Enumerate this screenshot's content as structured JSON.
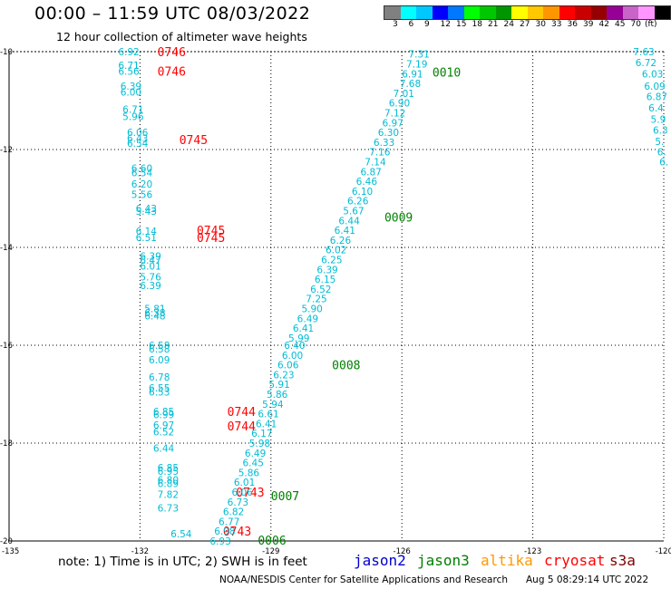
{
  "header": {
    "title": "00:00 – 11:59 UTC 08/03/2022",
    "subtitle": "12 hour collection of altimeter wave heights"
  },
  "legend": {
    "colors": [
      "#808080",
      "#00ffff",
      "#00c8ff",
      "#0000ff",
      "#0078ff",
      "#00ff00",
      "#00c800",
      "#009600",
      "#ffff00",
      "#ffc800",
      "#ff9600",
      "#ff0000",
      "#c80000",
      "#960000",
      "#960096",
      "#c864c8",
      "#ff96ff",
      "#000000"
    ],
    "labels": [
      "3",
      "6",
      "9",
      "12",
      "15",
      "18",
      "21",
      "24",
      "27",
      "30",
      "33",
      "36",
      "39",
      "42",
      "45",
      "70",
      "(ft)"
    ]
  },
  "axes": {
    "lon_labels": [
      "-135",
      "-132",
      "-129",
      "-126",
      "-123",
      "-120"
    ],
    "lat_labels": [
      "-10",
      "-12",
      "-14",
      "-16",
      "-18",
      "-20"
    ]
  },
  "colors": {
    "swh": "#00bcd4",
    "time_jason2": "#ff0000",
    "time_jason3": "#008000"
  },
  "passes": [
    {
      "name": "track-a",
      "time_labels": [
        {
          "text": "0746",
          "lon": -131.6,
          "lat": -10.0
        },
        {
          "text": "0746",
          "lon": -131.6,
          "lat": -10.4
        },
        {
          "text": "0745",
          "lon": -131.1,
          "lat": -11.8
        },
        {
          "text": "0745",
          "lon": -130.7,
          "lat": -13.65
        },
        {
          "text": "0745",
          "lon": -130.7,
          "lat": -13.8
        },
        {
          "text": "0744",
          "lon": -130.0,
          "lat": -17.35
        },
        {
          "text": "0744",
          "lon": -130.0,
          "lat": -17.65
        },
        {
          "text": "0743",
          "lon": -129.8,
          "lat": -19.0
        },
        {
          "text": "0743",
          "lon": -130.1,
          "lat": -19.8
        }
      ],
      "values": [
        {
          "text": "6.92",
          "lon": -132.5,
          "lat": -10.0
        },
        {
          "text": "6.71",
          "lon": -132.5,
          "lat": -10.28
        },
        {
          "text": "6.56",
          "lon": -132.5,
          "lat": -10.4
        },
        {
          "text": "6.39",
          "lon": -132.45,
          "lat": -10.7
        },
        {
          "text": "6.00",
          "lon": -132.45,
          "lat": -10.82
        },
        {
          "text": "6.71",
          "lon": -132.4,
          "lat": -11.18
        },
        {
          "text": "5.96",
          "lon": -132.4,
          "lat": -11.32
        },
        {
          "text": "6.06",
          "lon": -132.3,
          "lat": -11.65
        },
        {
          "text": "6.43",
          "lon": -132.3,
          "lat": -11.77
        },
        {
          "text": "6.54",
          "lon": -132.3,
          "lat": -11.87
        },
        {
          "text": "6.60",
          "lon": -132.2,
          "lat": -12.38
        },
        {
          "text": "6.54",
          "lon": -132.2,
          "lat": -12.47
        },
        {
          "text": "6.20",
          "lon": -132.2,
          "lat": -12.7
        },
        {
          "text": "5.56",
          "lon": -132.2,
          "lat": -12.92
        },
        {
          "text": "6.43",
          "lon": -132.1,
          "lat": -13.2
        },
        {
          "text": "5.43",
          "lon": -132.1,
          "lat": -13.26
        },
        {
          "text": "6.14",
          "lon": -132.1,
          "lat": -13.67
        },
        {
          "text": "6.51",
          "lon": -132.1,
          "lat": -13.8
        },
        {
          "text": "6.39",
          "lon": -132.0,
          "lat": -14.18
        },
        {
          "text": "6.47",
          "lon": -132.0,
          "lat": -14.26
        },
        {
          "text": "6.01",
          "lon": -132.0,
          "lat": -14.38
        },
        {
          "text": "5.76",
          "lon": -132.0,
          "lat": -14.6
        },
        {
          "text": "6.39",
          "lon": -132.0,
          "lat": -14.78
        },
        {
          "text": "5.81",
          "lon": -131.9,
          "lat": -15.25
        },
        {
          "text": "6.38",
          "lon": -131.9,
          "lat": -15.33
        },
        {
          "text": "6.48",
          "lon": -131.9,
          "lat": -15.4
        },
        {
          "text": "6.58",
          "lon": -131.8,
          "lat": -16.0
        },
        {
          "text": "6.58",
          "lon": -131.8,
          "lat": -16.07
        },
        {
          "text": "6.09",
          "lon": -131.8,
          "lat": -16.3
        },
        {
          "text": "6.78",
          "lon": -131.8,
          "lat": -16.65
        },
        {
          "text": "6.55",
          "lon": -131.8,
          "lat": -16.87
        },
        {
          "text": "6.53",
          "lon": -131.8,
          "lat": -16.95
        },
        {
          "text": "6.85",
          "lon": -131.7,
          "lat": -17.35
        },
        {
          "text": "6.99",
          "lon": -131.7,
          "lat": -17.42
        },
        {
          "text": "6.97",
          "lon": -131.7,
          "lat": -17.63
        },
        {
          "text": "6.52",
          "lon": -131.7,
          "lat": -17.77
        },
        {
          "text": "6.44",
          "lon": -131.7,
          "lat": -18.1
        },
        {
          "text": "6.85",
          "lon": -131.6,
          "lat": -18.5
        },
        {
          "text": "6.95",
          "lon": -131.6,
          "lat": -18.57
        },
        {
          "text": "6.80",
          "lon": -131.6,
          "lat": -18.75
        },
        {
          "text": "6.89",
          "lon": -131.6,
          "lat": -18.82
        },
        {
          "text": "7.82",
          "lon": -131.6,
          "lat": -19.05
        },
        {
          "text": "6.73",
          "lon": -131.6,
          "lat": -19.32
        },
        {
          "text": "6.54",
          "lon": -131.3,
          "lat": -19.85
        }
      ]
    },
    {
      "name": "track-b",
      "time_labels": [
        {
          "text": "0010",
          "lon": -125.3,
          "lat": -10.42
        },
        {
          "text": "0009",
          "lon": -126.4,
          "lat": -13.38
        },
        {
          "text": "0008",
          "lon": -127.6,
          "lat": -16.4
        },
        {
          "text": "0007",
          "lon": -129.0,
          "lat": -19.07
        },
        {
          "text": "0006",
          "lon": -129.3,
          "lat": -19.98
        }
      ],
      "values": [
        {
          "text": "7.31",
          "lon": -125.85,
          "lat": -10.05
        },
        {
          "text": "7.19",
          "lon": -125.9,
          "lat": -10.25
        },
        {
          "text": "6.91",
          "lon": -126.0,
          "lat": -10.45
        },
        {
          "text": "7.68",
          "lon": -126.05,
          "lat": -10.65
        },
        {
          "text": "7.01",
          "lon": -126.2,
          "lat": -10.85
        },
        {
          "text": "6.90",
          "lon": -126.3,
          "lat": -11.05
        },
        {
          "text": "7.12",
          "lon": -126.4,
          "lat": -11.25
        },
        {
          "text": "6.97",
          "lon": -126.45,
          "lat": -11.45
        },
        {
          "text": "6.30",
          "lon": -126.55,
          "lat": -11.65
        },
        {
          "text": "6.33",
          "lon": -126.65,
          "lat": -11.85
        },
        {
          "text": "7.16",
          "lon": -126.75,
          "lat": -12.05
        },
        {
          "text": "7.14",
          "lon": -126.85,
          "lat": -12.25
        },
        {
          "text": "6.87",
          "lon": -126.95,
          "lat": -12.45
        },
        {
          "text": "6.46",
          "lon": -127.05,
          "lat": -12.65
        },
        {
          "text": "6.10",
          "lon": -127.15,
          "lat": -12.85
        },
        {
          "text": "6.26",
          "lon": -127.25,
          "lat": -13.05
        },
        {
          "text": "5.67",
          "lon": -127.35,
          "lat": -13.25
        },
        {
          "text": "6.44",
          "lon": -127.45,
          "lat": -13.45
        },
        {
          "text": "6.41",
          "lon": -127.55,
          "lat": -13.65
        },
        {
          "text": "6.26",
          "lon": -127.65,
          "lat": -13.85
        },
        {
          "text": "6.02",
          "lon": -127.75,
          "lat": -14.05
        },
        {
          "text": "6.25",
          "lon": -127.85,
          "lat": -14.25
        },
        {
          "text": "6.39",
          "lon": -127.95,
          "lat": -14.45
        },
        {
          "text": "6.15",
          "lon": -128.0,
          "lat": -14.65
        },
        {
          "text": "6.52",
          "lon": -128.1,
          "lat": -14.85
        },
        {
          "text": "7.25",
          "lon": -128.2,
          "lat": -15.05
        },
        {
          "text": "5.90",
          "lon": -128.3,
          "lat": -15.25
        },
        {
          "text": "6.49",
          "lon": -128.4,
          "lat": -15.45
        },
        {
          "text": "6.41",
          "lon": -128.5,
          "lat": -15.65
        },
        {
          "text": "5.99",
          "lon": -128.6,
          "lat": -15.85
        },
        {
          "text": "6.40",
          "lon": -128.7,
          "lat": -16.0
        },
        {
          "text": "6.00",
          "lon": -128.75,
          "lat": -16.2
        },
        {
          "text": "6.06",
          "lon": -128.85,
          "lat": -16.4
        },
        {
          "text": "6.23",
          "lon": -128.95,
          "lat": -16.6
        },
        {
          "text": "5.91",
          "lon": -129.05,
          "lat": -16.8
        },
        {
          "text": "5.86",
          "lon": -129.1,
          "lat": -17.0
        },
        {
          "text": "5.94",
          "lon": -129.2,
          "lat": -17.2
        },
        {
          "text": "6.61",
          "lon": -129.3,
          "lat": -17.4
        },
        {
          "text": "6.41",
          "lon": -129.35,
          "lat": -17.6
        },
        {
          "text": "6.17",
          "lon": -129.45,
          "lat": -17.8
        },
        {
          "text": "5.98",
          "lon": -129.5,
          "lat": -18.0
        },
        {
          "text": "6.49",
          "lon": -129.6,
          "lat": -18.2
        },
        {
          "text": "6.45",
          "lon": -129.65,
          "lat": -18.4
        },
        {
          "text": "5.86",
          "lon": -129.75,
          "lat": -18.6
        },
        {
          "text": "6.01",
          "lon": -129.85,
          "lat": -18.8
        },
        {
          "text": "6.06",
          "lon": -129.9,
          "lat": -19.0
        },
        {
          "text": "6.73",
          "lon": -130.0,
          "lat": -19.2
        },
        {
          "text": "6.82",
          "lon": -130.1,
          "lat": -19.4
        },
        {
          "text": "6.77",
          "lon": -130.2,
          "lat": -19.6
        },
        {
          "text": "6.98",
          "lon": -130.3,
          "lat": -19.8
        },
        {
          "text": "6.93",
          "lon": -130.4,
          "lat": -20.0
        }
      ]
    },
    {
      "name": "track-c",
      "time_labels": [],
      "values": [
        {
          "text": "7.63",
          "lon": -120.7,
          "lat": -10.0
        },
        {
          "text": "6.72",
          "lon": -120.65,
          "lat": -10.22
        },
        {
          "text": "6.03",
          "lon": -120.5,
          "lat": -10.45
        },
        {
          "text": "6.09",
          "lon": -120.45,
          "lat": -10.7
        },
        {
          "text": "6.87",
          "lon": -120.4,
          "lat": -10.92
        },
        {
          "text": "6.4",
          "lon": -120.35,
          "lat": -11.15
        },
        {
          "text": "5.9",
          "lon": -120.3,
          "lat": -11.38
        },
        {
          "text": "6.3",
          "lon": -120.25,
          "lat": -11.6
        },
        {
          "text": "5.",
          "lon": -120.2,
          "lat": -11.83
        },
        {
          "text": "6.",
          "lon": -120.15,
          "lat": -12.05
        },
        {
          "text": "6.",
          "lon": -120.1,
          "lat": -12.25
        }
      ]
    }
  ],
  "footer": {
    "note": "note: 1) Time is in UTC; 2) SWH is in feet",
    "satellites": [
      {
        "name": "jason2",
        "color": "#0000cc"
      },
      {
        "name": "jason3",
        "color": "#008000"
      },
      {
        "name": "altika",
        "color": "#ff9900"
      },
      {
        "name": "cryosat",
        "color": "#ff0000"
      },
      {
        "name": "s3a",
        "color": "#800000"
      }
    ],
    "credit": "NOAA/NESDIS Center for Satellite Applications and Research",
    "generated": "Aug  5 08:29:14 UTC 2022"
  }
}
